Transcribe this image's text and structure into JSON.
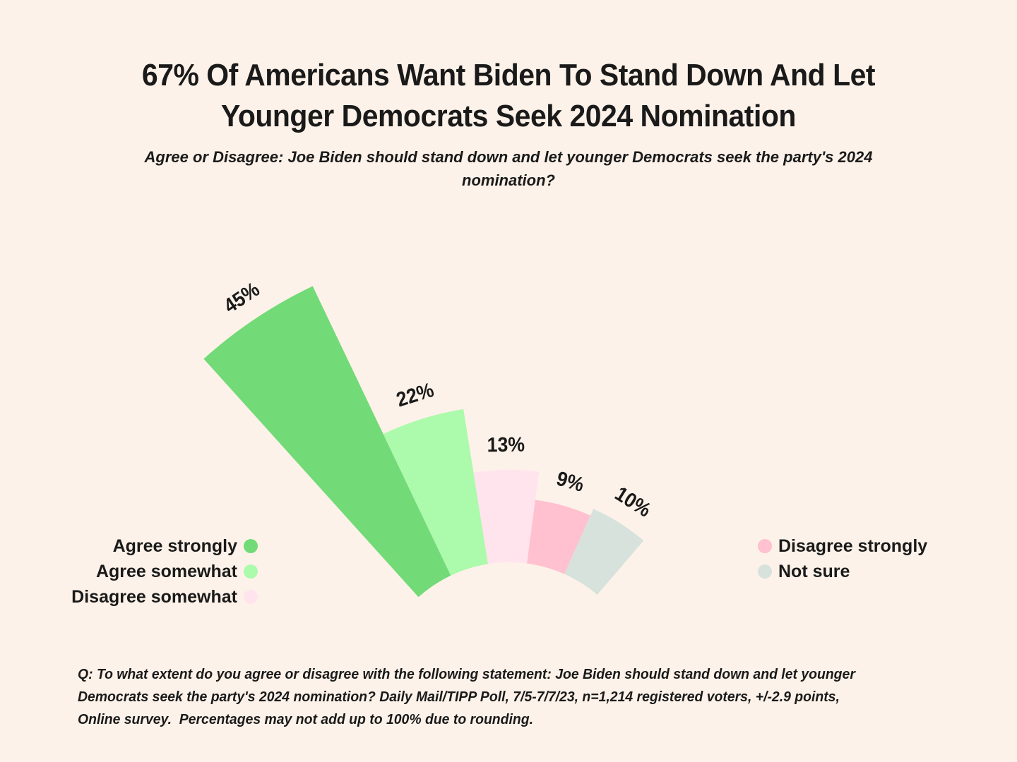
{
  "background_color": "#FDF2E9",
  "text_color": "#1a1a1a",
  "header": {
    "title_lines": [
      "67% Of Americans Want Biden To Stand Down And Let",
      "Younger Democrats Seek 2024 Nomination"
    ],
    "subtitle_lines": [
      "Agree or Disagree: Joe Biden should stand down and let younger Democrats seek the party's 2024",
      "nomination?"
    ]
  },
  "chart_data": {
    "type": "fan-rose",
    "description": "Five wedges fanning out from a common hub at bottom center; wedge radius proportional to value; ordered clockwise from upper-left",
    "categories": [
      "Agree strongly",
      "Agree somewhat",
      "Disagree somewhat",
      "Disagree strongly",
      "Not sure"
    ],
    "values": [
      45,
      22,
      13,
      9,
      10
    ],
    "labels": [
      "45%",
      "22%",
      "13%",
      "9%",
      "10%"
    ],
    "colors": [
      "#72DB78",
      "#ACFAAB",
      "#FFE4ED",
      "#FFC0CF",
      "#D7E2DC"
    ],
    "unit": "%",
    "grid": false,
    "legend_position": "bottom, split left and right of the fan hub"
  },
  "legend": {
    "left": [
      {
        "label": "Agree strongly",
        "color": "#72DB78"
      },
      {
        "label": "Agree somewhat",
        "color": "#ACFAAB"
      },
      {
        "label": "Disagree somewhat",
        "color": "#FFE4ED"
      }
    ],
    "right": [
      {
        "label": "Disagree strongly",
        "color": "#FFC0CF"
      },
      {
        "label": "Not sure",
        "color": "#D7E2DC"
      }
    ]
  },
  "footer": {
    "lines": [
      "Q: To what extent do you agree or disagree with the following statement: Joe Biden should stand down and let younger",
      "Democrats seek the party's 2024 nomination? Daily Mail/TIPP Poll, 7/5-7/7/23, n=1,214 registered voters, +/-2.9 points,",
      "Online survey.  Percentages may not add up to 100% due to rounding."
    ]
  }
}
